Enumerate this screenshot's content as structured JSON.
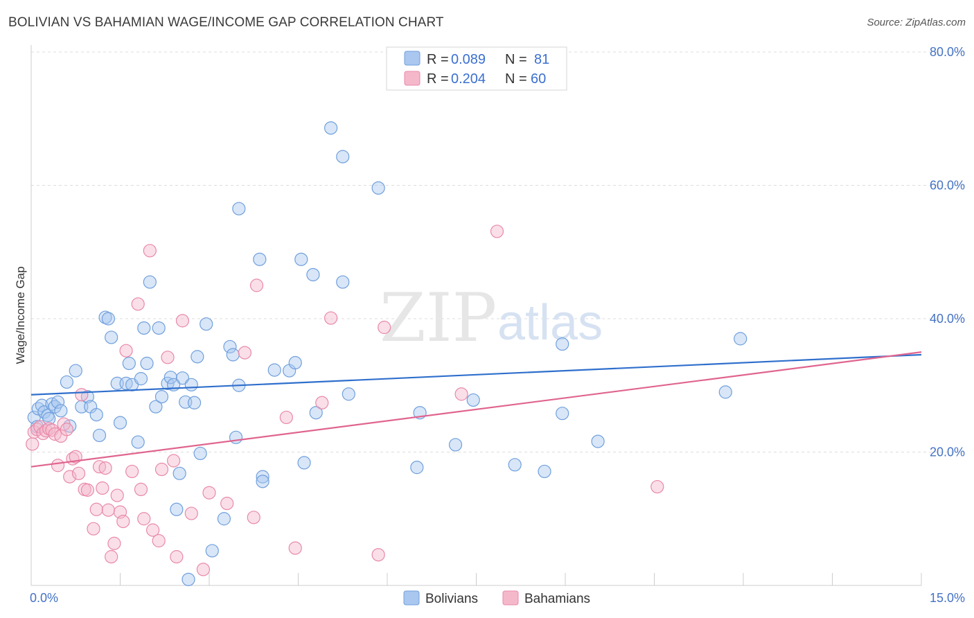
{
  "header": {
    "title": "BOLIVIAN VS BAHAMIAN WAGE/INCOME GAP CORRELATION CHART",
    "source": "Source: ZipAtlas.com"
  },
  "watermark": {
    "zip": "ZIP",
    "atlas": "atlas"
  },
  "colors": {
    "blue_fill": "#a9c7ef",
    "blue_stroke": "#6f9fdc",
    "blue_line": "#2f6fcc",
    "pink_fill": "#f5b8cb",
    "pink_stroke": "#e889a8",
    "pink_line": "#e0648e",
    "tick": "#4472c4"
  },
  "legend": {
    "rows": [
      {
        "r_label": "R = ",
        "r_value": "0.089",
        "n_label": "N = ",
        "n_value": "81",
        "series": "blue"
      },
      {
        "r_label": "R = ",
        "r_value": "0.204",
        "n_label": "N = ",
        "n_value": "60",
        "series": "pink"
      }
    ]
  },
  "bottom_legend": [
    "Bolivians",
    "Bahamians"
  ],
  "chart_data": {
    "type": "scatter",
    "title": "BOLIVIAN VS BAHAMIAN WAGE/INCOME GAP CORRELATION CHART",
    "xlabel": "",
    "ylabel": "Wage/Income Gap",
    "xlim": [
      0,
      15
    ],
    "ylim": [
      0,
      80
    ],
    "x_ticks": [
      0,
      15
    ],
    "x_tick_labels": [
      "0.0%",
      "15.0%"
    ],
    "y_ticks": [
      20,
      40,
      60,
      80
    ],
    "y_tick_labels": [
      "20.0%",
      "40.0%",
      "60.0%",
      "80.0%"
    ],
    "grid": true,
    "legend_position": "top-center",
    "series": [
      {
        "name": "Bolivians",
        "color": "#a9c7ef",
        "trend": {
          "x": [
            0,
            15
          ],
          "y": [
            28.6,
            34.6
          ]
        },
        "points": [
          [
            0.05,
            25.2
          ],
          [
            0.1,
            23.8
          ],
          [
            0.12,
            26.5
          ],
          [
            0.18,
            27.0
          ],
          [
            0.22,
            26.0
          ],
          [
            0.28,
            25.5
          ],
          [
            0.35,
            27.2
          ],
          [
            0.4,
            26.8
          ],
          [
            0.45,
            27.5
          ],
          [
            0.5,
            26.2
          ],
          [
            0.6,
            30.5
          ],
          [
            0.75,
            32.2
          ],
          [
            0.65,
            23.9
          ],
          [
            0.85,
            26.8
          ],
          [
            0.95,
            28.3
          ],
          [
            1.0,
            26.8
          ],
          [
            1.25,
            40.2
          ],
          [
            1.3,
            40.0
          ],
          [
            1.35,
            37.2
          ],
          [
            1.15,
            22.5
          ],
          [
            1.45,
            30.3
          ],
          [
            1.5,
            24.4
          ],
          [
            1.6,
            30.3
          ],
          [
            1.65,
            33.3
          ],
          [
            1.7,
            30.1
          ],
          [
            1.8,
            21.5
          ],
          [
            1.85,
            31.0
          ],
          [
            1.9,
            38.6
          ],
          [
            1.95,
            33.3
          ],
          [
            2.0,
            45.5
          ],
          [
            2.1,
            26.8
          ],
          [
            2.15,
            38.6
          ],
          [
            2.2,
            28.3
          ],
          [
            2.3,
            30.3
          ],
          [
            2.35,
            31.2
          ],
          [
            2.45,
            11.4
          ],
          [
            2.5,
            16.8
          ],
          [
            2.55,
            31.1
          ],
          [
            2.6,
            27.5
          ],
          [
            2.7,
            30.1
          ],
          [
            2.75,
            27.4
          ],
          [
            2.8,
            34.3
          ],
          [
            2.85,
            19.8
          ],
          [
            2.95,
            39.2
          ],
          [
            3.05,
            5.2
          ],
          [
            3.25,
            10.0
          ],
          [
            3.35,
            35.8
          ],
          [
            3.4,
            34.6
          ],
          [
            3.45,
            22.2
          ],
          [
            3.5,
            30.0
          ],
          [
            3.5,
            56.5
          ],
          [
            3.85,
            48.9
          ],
          [
            3.9,
            16.3
          ],
          [
            3.9,
            15.6
          ],
          [
            4.1,
            32.3
          ],
          [
            4.35,
            32.2
          ],
          [
            4.45,
            33.4
          ],
          [
            4.55,
            48.9
          ],
          [
            4.6,
            18.4
          ],
          [
            4.75,
            46.6
          ],
          [
            4.8,
            25.9
          ],
          [
            5.05,
            68.6
          ],
          [
            5.25,
            64.3
          ],
          [
            5.25,
            45.5
          ],
          [
            5.35,
            28.7
          ],
          [
            5.85,
            59.6
          ],
          [
            6.55,
            25.9
          ],
          [
            6.5,
            17.7
          ],
          [
            7.15,
            21.1
          ],
          [
            7.45,
            27.8
          ],
          [
            8.15,
            18.1
          ],
          [
            8.65,
            17.1
          ],
          [
            8.95,
            36.2
          ],
          [
            8.95,
            25.8
          ],
          [
            9.55,
            21.6
          ],
          [
            11.7,
            29.0
          ],
          [
            11.95,
            37.0
          ],
          [
            2.65,
            0.9
          ],
          [
            0.3,
            25.0
          ],
          [
            1.1,
            25.6
          ],
          [
            2.4,
            30.1
          ]
        ]
      },
      {
        "name": "Bahamians",
        "color": "#f5b8cb",
        "trend": {
          "x": [
            0,
            15
          ],
          "y": [
            17.8,
            35.0
          ]
        },
        "points": [
          [
            0.02,
            21.2
          ],
          [
            0.05,
            23.0
          ],
          [
            0.1,
            23.4
          ],
          [
            0.15,
            23.8
          ],
          [
            0.2,
            22.8
          ],
          [
            0.25,
            23.2
          ],
          [
            0.3,
            23.5
          ],
          [
            0.35,
            23.3
          ],
          [
            0.4,
            22.7
          ],
          [
            0.45,
            18.0
          ],
          [
            0.5,
            22.4
          ],
          [
            0.55,
            24.2
          ],
          [
            0.6,
            23.4
          ],
          [
            0.65,
            16.3
          ],
          [
            0.7,
            19.0
          ],
          [
            0.75,
            19.3
          ],
          [
            0.85,
            28.6
          ],
          [
            0.8,
            16.8
          ],
          [
            0.9,
            14.4
          ],
          [
            0.95,
            14.3
          ],
          [
            1.05,
            8.5
          ],
          [
            1.1,
            11.4
          ],
          [
            1.15,
            17.8
          ],
          [
            1.2,
            14.6
          ],
          [
            1.25,
            17.6
          ],
          [
            1.3,
            11.3
          ],
          [
            1.35,
            4.3
          ],
          [
            1.4,
            6.3
          ],
          [
            1.45,
            13.5
          ],
          [
            1.5,
            11.0
          ],
          [
            1.55,
            9.6
          ],
          [
            1.6,
            35.2
          ],
          [
            1.7,
            17.1
          ],
          [
            1.8,
            42.2
          ],
          [
            1.85,
            14.4
          ],
          [
            1.9,
            10.0
          ],
          [
            2.0,
            50.2
          ],
          [
            2.05,
            8.3
          ],
          [
            2.15,
            6.7
          ],
          [
            2.2,
            17.4
          ],
          [
            2.3,
            34.2
          ],
          [
            2.4,
            18.7
          ],
          [
            2.45,
            4.3
          ],
          [
            2.55,
            39.7
          ],
          [
            2.7,
            10.8
          ],
          [
            2.9,
            2.4
          ],
          [
            3.0,
            13.9
          ],
          [
            3.3,
            12.3
          ],
          [
            3.6,
            34.9
          ],
          [
            3.75,
            10.2
          ],
          [
            3.8,
            45.0
          ],
          [
            4.3,
            25.2
          ],
          [
            4.45,
            5.6
          ],
          [
            4.9,
            27.4
          ],
          [
            5.05,
            40.1
          ],
          [
            5.85,
            4.6
          ],
          [
            5.95,
            38.7
          ],
          [
            7.25,
            28.7
          ],
          [
            7.85,
            53.1
          ],
          [
            10.55,
            14.8
          ]
        ]
      }
    ]
  }
}
